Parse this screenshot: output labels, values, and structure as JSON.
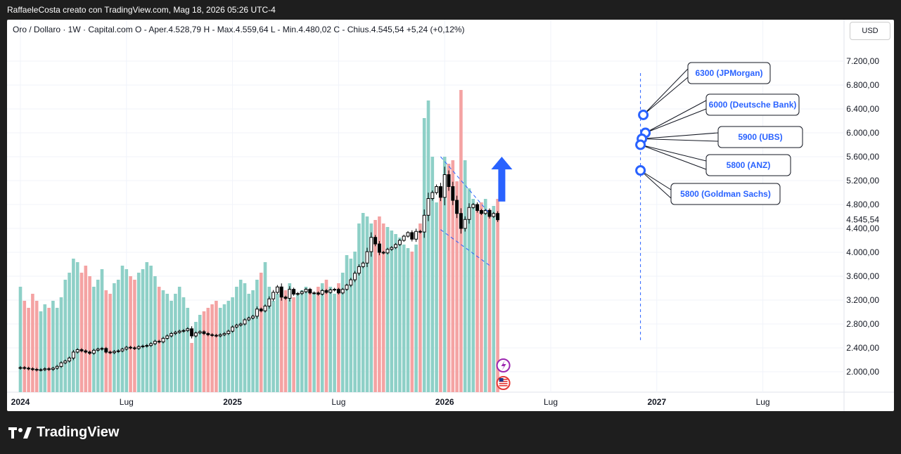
{
  "header": {
    "credit": "RaffaeleCosta creato con TradingView.com, Mag 18, 2026 05:26 UTC-4"
  },
  "legend": {
    "text": "Oro / Dollaro · 1W · Capital.com  O - Aper.4.528,79  H - Max.4.559,64  L - Min.4.480,02  C - Chius.4.545,54  +5,24 (+0,12%)"
  },
  "currency_button": "USD",
  "footer": {
    "brand": "TradingView"
  },
  "colors": {
    "up_volume": "#8ed0c7",
    "down_volume": "#f4a3a3",
    "annotation": "#2962ff",
    "candle": "#000000"
  },
  "chart_data": {
    "type": "candlestick",
    "symbol": "Oro / Dollaro",
    "interval": "1W",
    "source": "Capital.com",
    "last_price": "4.545,54",
    "y_ticks": [
      {
        "v": 2000,
        "label": "2.000,00"
      },
      {
        "v": 2400,
        "label": "2.400,00"
      },
      {
        "v": 2800,
        "label": "2.800,00"
      },
      {
        "v": 3200,
        "label": "3.200,00"
      },
      {
        "v": 3600,
        "label": "3.600,00"
      },
      {
        "v": 4000,
        "label": "4.000,00"
      },
      {
        "v": 4400,
        "label": "4.400,00"
      },
      {
        "v": 4800,
        "label": "4.800,00"
      },
      {
        "v": 5200,
        "label": "5.200,00"
      },
      {
        "v": 5600,
        "label": "5.600,00"
      },
      {
        "v": 6000,
        "label": "6.000,00"
      },
      {
        "v": 6400,
        "label": "6.400,00"
      },
      {
        "v": 6800,
        "label": "6.800,00"
      },
      {
        "v": 7200,
        "label": "7.200,00"
      }
    ],
    "x_ticks": [
      {
        "label": "2024",
        "bold": true,
        "week": 0
      },
      {
        "label": "Lug",
        "bold": false,
        "week": 26
      },
      {
        "label": "2025",
        "bold": true,
        "week": 52
      },
      {
        "label": "Lug",
        "bold": false,
        "week": 78
      },
      {
        "label": "2026",
        "bold": true,
        "week": 104
      },
      {
        "label": "Lug",
        "bold": false,
        "week": 130
      },
      {
        "label": "2027",
        "bold": true,
        "week": 156
      },
      {
        "label": "Lug",
        "bold": false,
        "week": 182
      }
    ],
    "closes": [
      2070,
      2060,
      2050,
      2040,
      2030,
      2035,
      2050,
      2040,
      2060,
      2090,
      2150,
      2180,
      2230,
      2330,
      2370,
      2350,
      2330,
      2310,
      2360,
      2380,
      2390,
      2330,
      2320,
      2340,
      2350,
      2380,
      2410,
      2400,
      2390,
      2420,
      2430,
      2440,
      2470,
      2510,
      2500,
      2560,
      2600,
      2640,
      2660,
      2680,
      2690,
      2720,
      2600,
      2650,
      2670,
      2640,
      2620,
      2610,
      2600,
      2620,
      2640,
      2680,
      2750,
      2780,
      2800,
      2870,
      2900,
      2930,
      3050,
      3020,
      3100,
      3220,
      3330,
      3420,
      3250,
      3230,
      3380,
      3300,
      3310,
      3340,
      3380,
      3320,
      3320,
      3300,
      3360,
      3330,
      3370,
      3380,
      3320,
      3380,
      3450,
      3540,
      3650,
      3760,
      3820,
      4010,
      4250,
      4140,
      4000,
      3990,
      4050,
      4080,
      4130,
      4200,
      4270,
      4330,
      4220,
      4350,
      4340,
      4620,
      4900,
      5000,
      5100,
      4920,
      5300,
      5100,
      4870,
      4650,
      4400,
      4550,
      4750,
      4800,
      4700,
      4650,
      4700,
      4600,
      4650,
      4545
    ],
    "volumes": [
      150,
      130,
      120,
      140,
      130,
      115,
      125,
      120,
      130,
      120,
      135,
      160,
      170,
      190,
      185,
      170,
      180,
      165,
      150,
      160,
      175,
      145,
      140,
      155,
      160,
      180,
      175,
      165,
      160,
      170,
      175,
      185,
      180,
      165,
      150,
      145,
      140,
      130,
      140,
      150,
      135,
      120,
      70,
      100,
      110,
      115,
      120,
      125,
      130,
      120,
      125,
      130,
      135,
      150,
      160,
      155,
      140,
      145,
      160,
      170,
      185,
      150,
      130,
      140,
      150,
      145,
      155,
      135,
      140,
      145,
      150,
      145,
      140,
      150,
      155,
      160,
      150,
      140,
      155,
      170,
      195,
      190,
      200,
      240,
      255,
      250,
      240,
      245,
      250,
      240,
      235,
      230,
      225,
      220,
      210,
      205,
      200,
      210,
      240,
      390,
      415,
      335,
      270,
      280,
      335,
      325,
      330,
      300,
      430,
      330,
      290,
      275,
      260,
      270,
      275,
      260,
      265,
      275
    ],
    "channel": {
      "upper": [
        [
          103,
          5600
        ],
        [
          115,
          4650
        ]
      ],
      "lower": [
        [
          103,
          4380
        ],
        [
          115,
          3780
        ]
      ]
    },
    "target_arrow": {
      "week": 118,
      "from": 4850,
      "to": 5600
    },
    "target_dates_line_week": 152,
    "targets": [
      {
        "label": "6300 (JPMorgan)",
        "value": 6300
      },
      {
        "label": "6000 (Deutsche Bank)",
        "value": 6000
      },
      {
        "label": "5900 (UBS)",
        "value": 5900
      },
      {
        "label": "5800 (ANZ)",
        "value": 5800
      },
      {
        "label": "5800 (Goldman Sachs)",
        "value": 5800
      }
    ]
  }
}
